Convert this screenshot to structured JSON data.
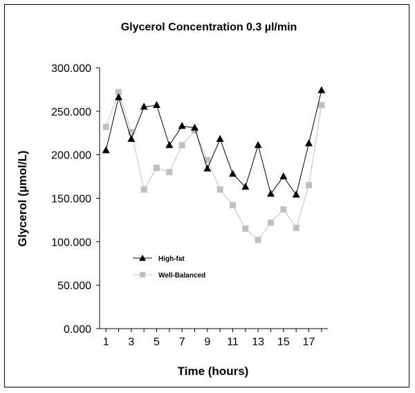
{
  "chart_data": {
    "type": "line",
    "title": "Glycerol Concentration 0.3 µl/min",
    "xlabel": "Time (hours)",
    "ylabel": "Glycerol (µmol/L)",
    "x": [
      1,
      2,
      3,
      4,
      5,
      6,
      7,
      8,
      9,
      10,
      11,
      12,
      13,
      14,
      15,
      16,
      17,
      18
    ],
    "xticks": [
      "1",
      "3",
      "5",
      "7",
      "9",
      "11",
      "13",
      "15",
      "17"
    ],
    "xtick_values": [
      1,
      3,
      5,
      7,
      9,
      11,
      13,
      15,
      17
    ],
    "xlim": [
      0.5,
      18.5
    ],
    "ylim": [
      0,
      300
    ],
    "yticks": [
      "0.000",
      "50.000",
      "100.000",
      "150.000",
      "200.000",
      "250.000",
      "300.000"
    ],
    "ytick_values": [
      0,
      50,
      100,
      150,
      200,
      250,
      300
    ],
    "grid": false,
    "legend_position": "left-middle",
    "series": [
      {
        "name": "High-fat",
        "marker": "triangle",
        "color": "#000000",
        "values": [
          205,
          266,
          218,
          255,
          257,
          211,
          233,
          231,
          184,
          218,
          178,
          163,
          211,
          155,
          175,
          154,
          213,
          274
        ]
      },
      {
        "name": "Well-Balanced",
        "marker": "square",
        "color": "#c0c0c0",
        "values": [
          232,
          272,
          226,
          160,
          185,
          180,
          211,
          228,
          194,
          160,
          142,
          115,
          102,
          122,
          137,
          116,
          165,
          257
        ]
      }
    ]
  }
}
